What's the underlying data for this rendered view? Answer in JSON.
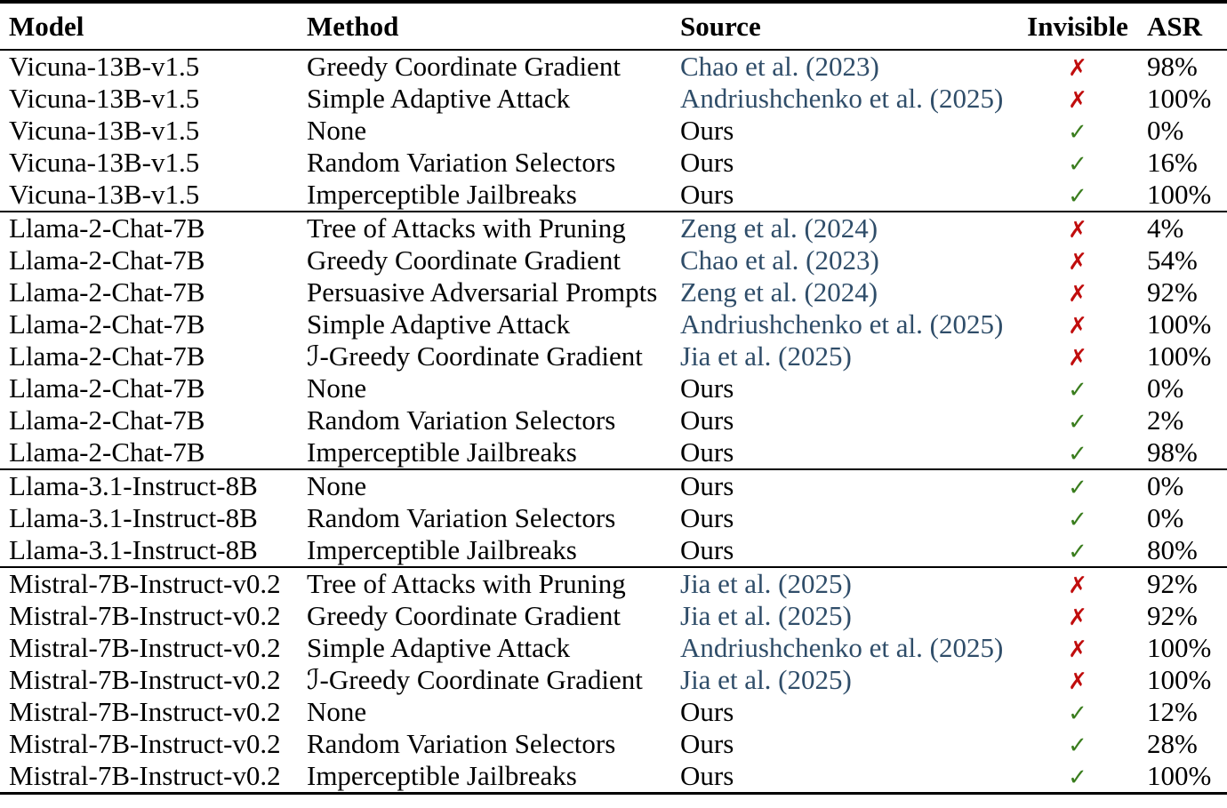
{
  "table": {
    "columns": [
      {
        "key": "model",
        "label": "Model"
      },
      {
        "key": "method",
        "label": "Method"
      },
      {
        "key": "source",
        "label": "Source"
      },
      {
        "key": "invisible",
        "label": "Invisible"
      },
      {
        "key": "asr",
        "label": "ASR"
      }
    ],
    "marks": {
      "yes": "✓",
      "no": "✗"
    },
    "colors": {
      "text": "#000000",
      "citation_link": "#2f4d69",
      "check_green": "#3a7d1e",
      "cross_red": "#c00d0d",
      "rule": "#000000",
      "background": "#ffffff"
    },
    "sections": [
      {
        "rows": [
          {
            "model": "Vicuna-13B-v1.5",
            "method": "Greedy Coordinate Gradient",
            "source": "Chao et al. (2023)",
            "source_is_link": true,
            "invisible": false,
            "asr": "98%"
          },
          {
            "model": "Vicuna-13B-v1.5",
            "method": "Simple Adaptive Attack",
            "source": "Andriushchenko et al. (2025)",
            "source_is_link": true,
            "invisible": false,
            "asr": "100%"
          },
          {
            "model": "Vicuna-13B-v1.5",
            "method": "None",
            "source": "Ours",
            "source_is_link": false,
            "invisible": true,
            "asr": "0%"
          },
          {
            "model": "Vicuna-13B-v1.5",
            "method": "Random Variation Selectors",
            "source": "Ours",
            "source_is_link": false,
            "invisible": true,
            "asr": "16%"
          },
          {
            "model": "Vicuna-13B-v1.5",
            "method": "Imperceptible Jailbreaks",
            "source": "Ours",
            "source_is_link": false,
            "invisible": true,
            "asr": "100%"
          }
        ]
      },
      {
        "rows": [
          {
            "model": "Llama-2-Chat-7B",
            "method": "Tree of Attacks with Pruning",
            "source": "Zeng et al. (2024)",
            "source_is_link": true,
            "invisible": false,
            "asr": "4%"
          },
          {
            "model": "Llama-2-Chat-7B",
            "method": "Greedy Coordinate Gradient",
            "source": "Chao et al. (2023)",
            "source_is_link": true,
            "invisible": false,
            "asr": "54%"
          },
          {
            "model": "Llama-2-Chat-7B",
            "method": "Persuasive Adversarial Prompts",
            "source": "Zeng et al. (2024)",
            "source_is_link": true,
            "invisible": false,
            "asr": "92%"
          },
          {
            "model": "Llama-2-Chat-7B",
            "method": "Simple Adaptive Attack",
            "source": "Andriushchenko et al. (2025)",
            "source_is_link": true,
            "invisible": false,
            "asr": "100%"
          },
          {
            "model": "Llama-2-Chat-7B",
            "method": "ℐ-Greedy Coordinate Gradient",
            "source": "Jia et al. (2025)",
            "source_is_link": true,
            "invisible": false,
            "asr": "100%"
          },
          {
            "model": "Llama-2-Chat-7B",
            "method": "None",
            "source": "Ours",
            "source_is_link": false,
            "invisible": true,
            "asr": "0%"
          },
          {
            "model": "Llama-2-Chat-7B",
            "method": "Random Variation Selectors",
            "source": "Ours",
            "source_is_link": false,
            "invisible": true,
            "asr": "2%"
          },
          {
            "model": "Llama-2-Chat-7B",
            "method": "Imperceptible Jailbreaks",
            "source": "Ours",
            "source_is_link": false,
            "invisible": true,
            "asr": "98%"
          }
        ]
      },
      {
        "rows": [
          {
            "model": "Llama-3.1-Instruct-8B",
            "method": "None",
            "source": "Ours",
            "source_is_link": false,
            "invisible": true,
            "asr": "0%"
          },
          {
            "model": "Llama-3.1-Instruct-8B",
            "method": "Random Variation Selectors",
            "source": "Ours",
            "source_is_link": false,
            "invisible": true,
            "asr": "0%"
          },
          {
            "model": "Llama-3.1-Instruct-8B",
            "method": "Imperceptible Jailbreaks",
            "source": "Ours",
            "source_is_link": false,
            "invisible": true,
            "asr": "80%"
          }
        ]
      },
      {
        "rows": [
          {
            "model": "Mistral-7B-Instruct-v0.2",
            "method": "Tree of Attacks with Pruning",
            "source": "Jia et al. (2025)",
            "source_is_link": true,
            "invisible": false,
            "asr": "92%"
          },
          {
            "model": "Mistral-7B-Instruct-v0.2",
            "method": "Greedy Coordinate Gradient",
            "source": "Jia et al. (2025)",
            "source_is_link": true,
            "invisible": false,
            "asr": "92%"
          },
          {
            "model": "Mistral-7B-Instruct-v0.2",
            "method": "Simple Adaptive Attack",
            "source": "Andriushchenko et al. (2025)",
            "source_is_link": true,
            "invisible": false,
            "asr": "100%"
          },
          {
            "model": "Mistral-7B-Instruct-v0.2",
            "method": "ℐ-Greedy Coordinate Gradient",
            "source": "Jia et al. (2025)",
            "source_is_link": true,
            "invisible": false,
            "asr": "100%"
          },
          {
            "model": "Mistral-7B-Instruct-v0.2",
            "method": "None",
            "source": "Ours",
            "source_is_link": false,
            "invisible": true,
            "asr": "12%"
          },
          {
            "model": "Mistral-7B-Instruct-v0.2",
            "method": "Random Variation Selectors",
            "source": "Ours",
            "source_is_link": false,
            "invisible": true,
            "asr": "28%"
          },
          {
            "model": "Mistral-7B-Instruct-v0.2",
            "method": "Imperceptible Jailbreaks",
            "source": "Ours",
            "source_is_link": false,
            "invisible": true,
            "asr": "100%"
          }
        ]
      }
    ]
  }
}
